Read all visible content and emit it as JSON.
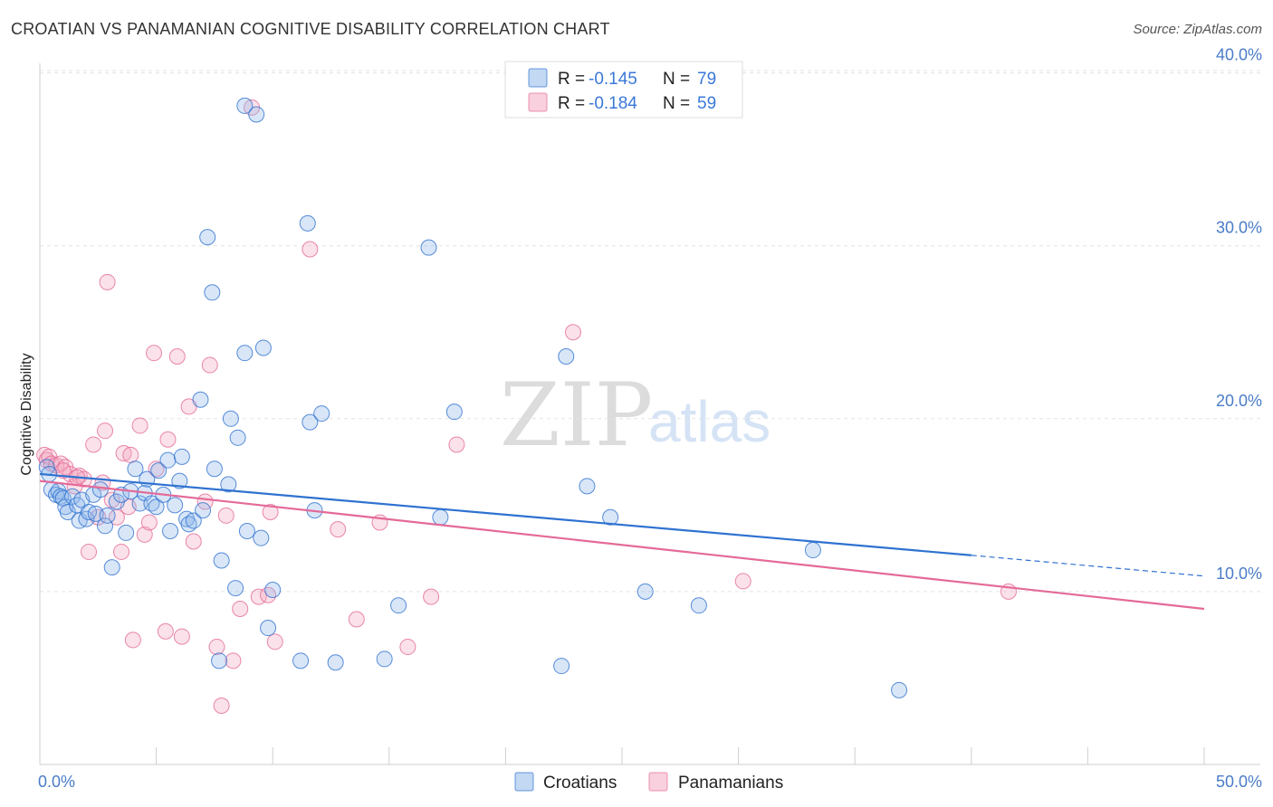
{
  "header": {
    "title": "CROATIAN VS PANAMANIAN COGNITIVE DISABILITY CORRELATION CHART",
    "source": "Source: ZipAtlas.com"
  },
  "colors": {
    "croatians": "#8fb8ea",
    "croatians_line": "#2f72d0",
    "panamanians": "#f4a9c1",
    "panamanians_line": "#e46a98",
    "tick": "#4a7cc7",
    "grid": "#e3e3e3"
  },
  "legend": {
    "r_label": "R =",
    "n_label": "N =",
    "croatians_r": "-0.145",
    "croatians_n": "79",
    "panamanians_r": "-0.184",
    "panamanians_n": "59"
  },
  "watermark": {
    "zip": "ZIP",
    "atlas": "atlas"
  },
  "chart_data": {
    "type": "scatter",
    "title": "CROATIAN VS PANAMANIAN COGNITIVE DISABILITY CORRELATION CHART",
    "xlabel": "",
    "ylabel": "Cognitive Disability",
    "xlim": [
      0,
      50
    ],
    "ylim": [
      0,
      40.0
    ],
    "x_tick_labels": [
      "0.0%",
      "50.0%"
    ],
    "y_ticks": [
      10,
      20,
      30,
      40
    ],
    "y_tick_labels": [
      "10.0%",
      "20.0%",
      "30.0%",
      "40.0%"
    ],
    "grid": true,
    "legend_position": "top-center",
    "bottom_legend": [
      "Croatians",
      "Panamanians"
    ],
    "series": [
      {
        "name": "Croatians",
        "r": -0.145,
        "n": 79,
        "trend": {
          "x_start": 0,
          "y_start": 16.8,
          "x_end": 40,
          "y_end": 12.1,
          "dashed_to_x": 50,
          "dashed_y_end": 10.9
        },
        "points": [
          [
            0.3,
            17.2
          ],
          [
            0.4,
            16.8
          ],
          [
            0.5,
            15.9
          ],
          [
            0.7,
            15.6
          ],
          [
            0.8,
            15.8
          ],
          [
            0.9,
            15.5
          ],
          [
            1.0,
            15.4
          ],
          [
            1.1,
            14.9
          ],
          [
            1.2,
            14.6
          ],
          [
            1.4,
            15.5
          ],
          [
            1.6,
            15.0
          ],
          [
            1.7,
            14.1
          ],
          [
            1.8,
            15.3
          ],
          [
            2.0,
            14.2
          ],
          [
            2.1,
            14.6
          ],
          [
            2.3,
            15.6
          ],
          [
            2.4,
            14.5
          ],
          [
            2.6,
            15.9
          ],
          [
            2.8,
            13.8
          ],
          [
            2.9,
            14.4
          ],
          [
            3.1,
            11.4
          ],
          [
            3.3,
            15.2
          ],
          [
            3.5,
            15.6
          ],
          [
            3.7,
            13.4
          ],
          [
            3.9,
            15.8
          ],
          [
            4.1,
            17.1
          ],
          [
            4.3,
            15.1
          ],
          [
            4.5,
            15.7
          ],
          [
            4.6,
            16.5
          ],
          [
            4.8,
            15.1
          ],
          [
            5.0,
            14.9
          ],
          [
            5.1,
            17.0
          ],
          [
            5.3,
            15.6
          ],
          [
            5.5,
            17.6
          ],
          [
            5.6,
            13.5
          ],
          [
            5.8,
            15.0
          ],
          [
            6.0,
            16.4
          ],
          [
            6.1,
            17.8
          ],
          [
            6.3,
            14.2
          ],
          [
            6.4,
            13.9
          ],
          [
            6.6,
            14.1
          ],
          [
            6.9,
            21.1
          ],
          [
            7.0,
            14.7
          ],
          [
            7.2,
            30.5
          ],
          [
            7.4,
            27.3
          ],
          [
            7.5,
            17.1
          ],
          [
            7.7,
            6.0
          ],
          [
            7.8,
            11.8
          ],
          [
            8.1,
            16.2
          ],
          [
            8.2,
            20.0
          ],
          [
            8.4,
            10.2
          ],
          [
            8.5,
            18.9
          ],
          [
            8.8,
            23.8
          ],
          [
            8.9,
            13.5
          ],
          [
            9.3,
            37.6
          ],
          [
            9.5,
            13.1
          ],
          [
            9.6,
            24.1
          ],
          [
            9.8,
            7.9
          ],
          [
            10.0,
            10.1
          ],
          [
            11.2,
            6.0
          ],
          [
            11.5,
            31.3
          ],
          [
            11.6,
            19.8
          ],
          [
            11.8,
            14.7
          ],
          [
            12.1,
            20.3
          ],
          [
            12.7,
            5.9
          ],
          [
            14.8,
            6.1
          ],
          [
            15.4,
            9.2
          ],
          [
            16.7,
            29.9
          ],
          [
            17.2,
            14.3
          ],
          [
            17.8,
            20.4
          ],
          [
            22.4,
            5.7
          ],
          [
            22.6,
            23.6
          ],
          [
            23.5,
            16.1
          ],
          [
            24.5,
            14.3
          ],
          [
            26.0,
            10.0
          ],
          [
            28.3,
            9.2
          ],
          [
            33.2,
            12.4
          ],
          [
            36.9,
            4.3
          ],
          [
            8.8,
            38.1
          ]
        ]
      },
      {
        "name": "Panamanians",
        "r": -0.184,
        "n": 59,
        "trend": {
          "x_start": 0,
          "y_start": 16.4,
          "x_end": 50,
          "y_end": 9.0
        },
        "points": [
          [
            0.2,
            17.9
          ],
          [
            0.3,
            17.6
          ],
          [
            0.4,
            17.8
          ],
          [
            0.5,
            17.4
          ],
          [
            0.7,
            17.3
          ],
          [
            0.9,
            17.4
          ],
          [
            1.1,
            17.2
          ],
          [
            1.3,
            16.8
          ],
          [
            1.5,
            16.1
          ],
          [
            1.7,
            16.7
          ],
          [
            1.9,
            16.5
          ],
          [
            2.1,
            12.3
          ],
          [
            2.3,
            18.5
          ],
          [
            2.5,
            14.3
          ],
          [
            2.7,
            16.3
          ],
          [
            2.8,
            19.3
          ],
          [
            2.9,
            27.9
          ],
          [
            3.1,
            15.3
          ],
          [
            3.3,
            14.3
          ],
          [
            3.5,
            12.3
          ],
          [
            3.6,
            18.0
          ],
          [
            3.8,
            14.9
          ],
          [
            3.9,
            17.9
          ],
          [
            4.0,
            7.2
          ],
          [
            4.3,
            19.6
          ],
          [
            4.5,
            13.3
          ],
          [
            4.7,
            14.0
          ],
          [
            4.9,
            23.8
          ],
          [
            5.0,
            17.1
          ],
          [
            5.4,
            7.7
          ],
          [
            5.5,
            18.8
          ],
          [
            5.9,
            23.6
          ],
          [
            6.1,
            7.4
          ],
          [
            6.4,
            20.7
          ],
          [
            6.6,
            12.9
          ],
          [
            7.1,
            15.2
          ],
          [
            7.3,
            23.1
          ],
          [
            7.6,
            6.8
          ],
          [
            7.8,
            3.4
          ],
          [
            8.0,
            14.4
          ],
          [
            8.3,
            6.0
          ],
          [
            8.6,
            9.0
          ],
          [
            9.1,
            38.0
          ],
          [
            9.4,
            9.7
          ],
          [
            9.8,
            9.8
          ],
          [
            9.9,
            14.6
          ],
          [
            10.1,
            7.1
          ],
          [
            11.6,
            29.8
          ],
          [
            12.8,
            13.6
          ],
          [
            13.6,
            8.4
          ],
          [
            14.6,
            14.0
          ],
          [
            15.8,
            6.8
          ],
          [
            16.8,
            9.7
          ],
          [
            17.9,
            18.5
          ],
          [
            22.9,
            25.0
          ],
          [
            30.2,
            10.6
          ],
          [
            41.6,
            10.0
          ],
          [
            1.0,
            17.0
          ],
          [
            1.6,
            16.6
          ]
        ]
      }
    ]
  }
}
